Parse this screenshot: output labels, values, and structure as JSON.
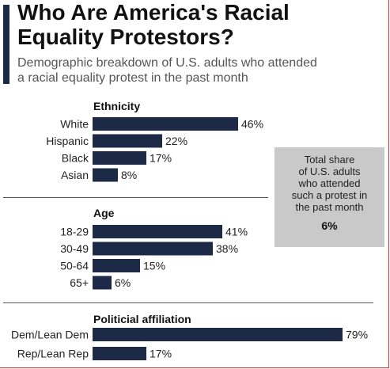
{
  "header": {
    "title_line1": "Who Are America's Racial",
    "title_line2": "Equality Protestors?",
    "subtitle_line1": "Demographic breakdown of U.S. adults who attended",
    "subtitle_line2": "a racial equality protest in the past month"
  },
  "info_box": {
    "text_lines": [
      "Total share",
      "of U.S. adults",
      "who attended",
      "such a protest in",
      "the past month"
    ],
    "value": "6%"
  },
  "chart_data": {
    "type": "bar",
    "orientation": "horizontal",
    "value_unit": "%",
    "bar_color": "#1c2a47",
    "xlim": [
      0,
      100
    ],
    "groups": [
      {
        "title": "Ethnicity",
        "categories": [
          "White",
          "Hispanic",
          "Black",
          "Asian"
        ],
        "values": [
          46,
          22,
          17,
          8
        ],
        "labels": [
          "46%",
          "22%",
          "17%",
          "8%"
        ]
      },
      {
        "title": "Age",
        "categories": [
          "18-29",
          "30-49",
          "50-64",
          "65+"
        ],
        "values": [
          41,
          38,
          15,
          6
        ],
        "labels": [
          "41%",
          "38%",
          "15%",
          "6%"
        ]
      },
      {
        "title": "Politicial affiliation",
        "categories": [
          "Dem/Lean Dem",
          "Rep/Lean Rep"
        ],
        "values": [
          79,
          17
        ],
        "labels": [
          "79%",
          "17%"
        ]
      }
    ]
  }
}
